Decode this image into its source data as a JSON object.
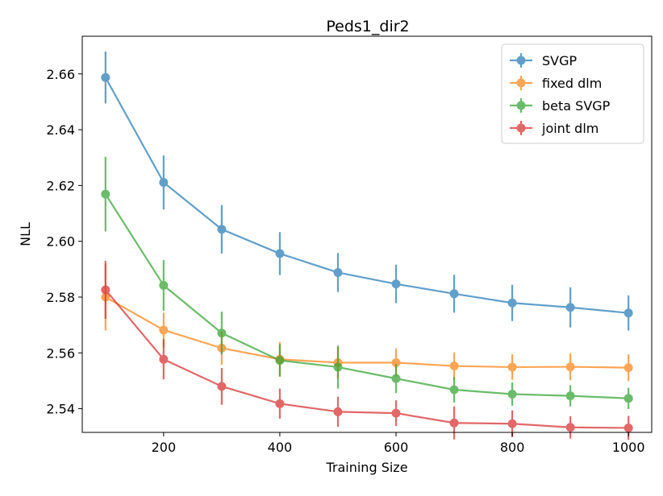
{
  "chart_data": {
    "type": "line",
    "title": "Peds1_dir2",
    "xlabel": "Training Size",
    "ylabel": "NLL",
    "xlim": [
      60,
      1040
    ],
    "ylim": [
      2.5315,
      2.6735
    ],
    "xticks": [
      200,
      400,
      600,
      800,
      1000
    ],
    "yticks": [
      2.54,
      2.56,
      2.58,
      2.6,
      2.62,
      2.64,
      2.66
    ],
    "ytick_labels": [
      "2.54",
      "2.56",
      "2.58",
      "2.60",
      "2.62",
      "2.64",
      "2.66"
    ],
    "grid": false,
    "legend_position": "top-right",
    "x": [
      100,
      200,
      300,
      400,
      500,
      600,
      700,
      800,
      900,
      1000
    ],
    "series": [
      {
        "name": "SVGP",
        "color": "#1f77b4",
        "values": [
          2.6587,
          2.6211,
          2.6043,
          2.5956,
          2.5888,
          2.5847,
          2.5812,
          2.5779,
          2.5763,
          2.5743
        ],
        "errors": [
          0.0093,
          0.0097,
          0.0087,
          0.0077,
          0.007,
          0.0069,
          0.0068,
          0.0065,
          0.0072,
          0.0063
        ]
      },
      {
        "name": "fixed dlm",
        "color": "#ff7f0e",
        "values": [
          2.58,
          2.5682,
          2.5617,
          2.5577,
          2.5565,
          2.5565,
          2.5553,
          2.5549,
          2.555,
          2.5547
        ],
        "errors": [
          0.012,
          0.0062,
          0.006,
          0.0062,
          0.0057,
          0.0051,
          0.0049,
          0.0046,
          0.0048,
          0.0048
        ]
      },
      {
        "name": "beta SVGP",
        "color": "#2ca02c",
        "values": [
          2.6169,
          2.5842,
          2.5671,
          2.5573,
          2.5549,
          2.5508,
          2.5468,
          2.5452,
          2.5446,
          2.5437
        ],
        "errors": [
          0.0134,
          0.0091,
          0.0077,
          0.0058,
          0.0077,
          0.0052,
          0.0046,
          0.0042,
          0.0038,
          0.0038
        ]
      },
      {
        "name": "joint dlm",
        "color": "#d62728",
        "values": [
          2.5826,
          2.5577,
          2.548,
          2.5418,
          2.5389,
          2.5384,
          2.5349,
          2.5346,
          2.5333,
          2.5331
        ],
        "errors": [
          0.0104,
          0.0072,
          0.0066,
          0.0054,
          0.0054,
          0.0046,
          0.0059,
          0.0048,
          0.004,
          0.0043
        ]
      }
    ]
  }
}
